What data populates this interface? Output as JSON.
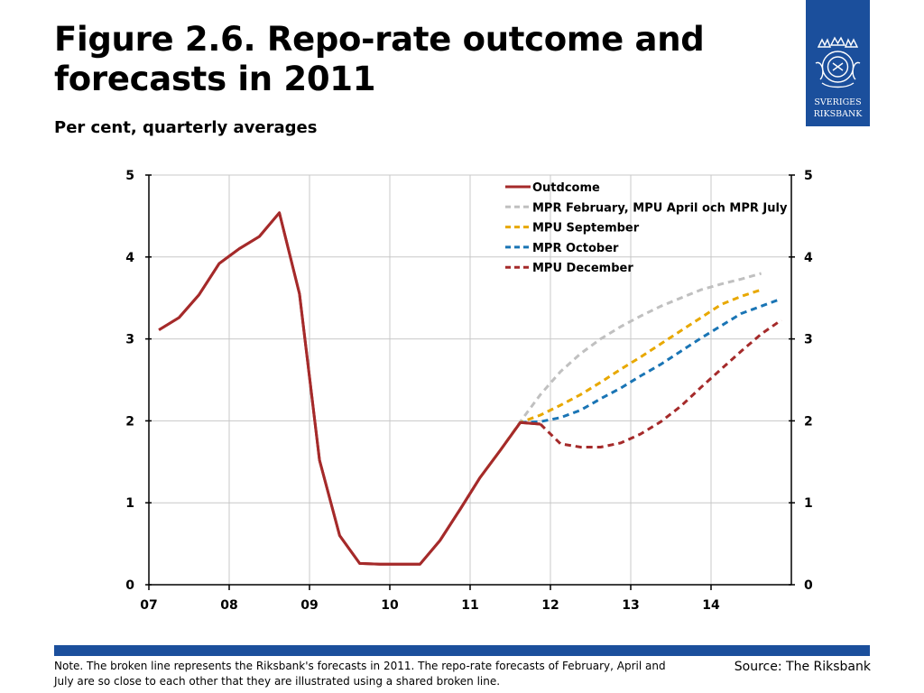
{
  "title": "Figure 2.6. Repo-rate outcome and forecasts in 2011",
  "subtitle": "Per cent, quarterly averages",
  "logo": {
    "line1": "SVERIGES",
    "line2": "RIKSBANK"
  },
  "note": "Note. The broken line represents the Riksbank's forecasts in 2011. The repo-rate forecasts of February, April and July are so close to each other that they are illustrated using a shared broken line.",
  "source": "Source: The Riksbank",
  "colors": {
    "brand": "#1b4f9c",
    "outcome": "#a52a2a",
    "mpr_feb_apr_jul": "#c0c0c0",
    "mpu_sep": "#e8a800",
    "mpr_oct": "#1a75b5",
    "mpu_dec": "#a52a2a"
  },
  "chart_data": {
    "type": "line",
    "title": "",
    "xlabel": "",
    "ylabel": "",
    "x_tick_labels": [
      "07",
      "08",
      "09",
      "10",
      "11",
      "12",
      "13",
      "14"
    ],
    "xlim": [
      2007,
      2015
    ],
    "ylim": [
      0,
      5
    ],
    "y_ticks": [
      0,
      1,
      2,
      3,
      4,
      5
    ],
    "grid": true,
    "legend_position": "top-right",
    "series": [
      {
        "name": "Outdcome",
        "style": "solid",
        "color": "#a52a2a",
        "x": [
          2007.125,
          2007.375,
          2007.625,
          2007.875,
          2008.125,
          2008.375,
          2008.625,
          2008.875,
          2009.125,
          2009.375,
          2009.625,
          2009.875,
          2010.125,
          2010.375,
          2010.625,
          2010.875,
          2011.125,
          2011.375,
          2011.625,
          2011.875
        ],
        "values": [
          3.11,
          3.26,
          3.54,
          3.92,
          4.1,
          4.25,
          4.54,
          3.55,
          1.52,
          0.6,
          0.26,
          0.25,
          0.25,
          0.25,
          0.54,
          0.92,
          1.31,
          1.64,
          1.98,
          1.96
        ]
      },
      {
        "name": "MPR February, MPU April och MPR July",
        "style": "dashed",
        "color": "#c0c0c0",
        "x": [
          2011.125,
          2011.375,
          2011.625,
          2011.875,
          2012.125,
          2012.375,
          2012.625,
          2012.875,
          2013.125,
          2013.375,
          2013.625,
          2013.875,
          2014.125,
          2014.375,
          2014.625
        ],
        "values": [
          1.31,
          1.64,
          1.99,
          2.32,
          2.6,
          2.82,
          3.0,
          3.15,
          3.28,
          3.4,
          3.5,
          3.6,
          3.67,
          3.73,
          3.8
        ]
      },
      {
        "name": "MPU September",
        "style": "dashed",
        "color": "#e8a800",
        "x": [
          2011.125,
          2011.375,
          2011.625,
          2011.875,
          2012.125,
          2012.375,
          2012.625,
          2012.875,
          2013.125,
          2013.375,
          2013.625,
          2013.875,
          2014.125,
          2014.375,
          2014.625
        ],
        "values": [
          1.31,
          1.64,
          1.98,
          2.07,
          2.19,
          2.32,
          2.47,
          2.63,
          2.78,
          2.94,
          3.1,
          3.26,
          3.42,
          3.52,
          3.6
        ]
      },
      {
        "name": "MPR October",
        "style": "dashed",
        "color": "#1a75b5",
        "x": [
          2011.625,
          2011.875,
          2012.125,
          2012.375,
          2012.625,
          2012.875,
          2013.125,
          2013.375,
          2013.625,
          2013.875,
          2014.125,
          2014.375,
          2014.625,
          2014.875
        ],
        "values": [
          1.98,
          1.99,
          2.04,
          2.13,
          2.27,
          2.4,
          2.55,
          2.69,
          2.85,
          3.01,
          3.16,
          3.31,
          3.4,
          3.49
        ]
      },
      {
        "name": "MPU December",
        "style": "dashed",
        "color": "#a52a2a",
        "x": [
          2011.875,
          2012.125,
          2012.375,
          2012.625,
          2012.875,
          2013.125,
          2013.375,
          2013.625,
          2013.875,
          2014.125,
          2014.375,
          2014.625,
          2014.875
        ],
        "values": [
          1.96,
          1.72,
          1.68,
          1.68,
          1.73,
          1.84,
          1.99,
          2.18,
          2.41,
          2.63,
          2.85,
          3.06,
          3.23
        ]
      }
    ]
  }
}
